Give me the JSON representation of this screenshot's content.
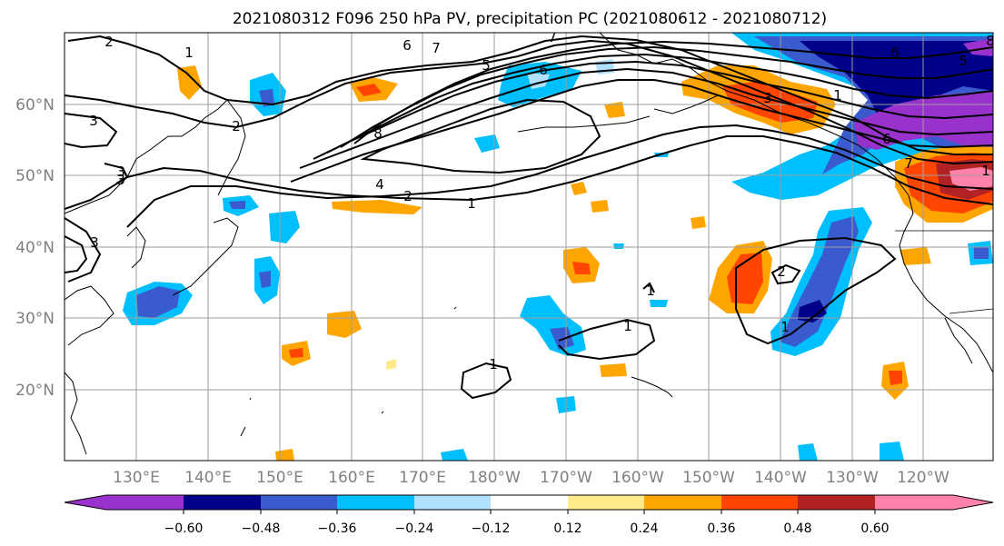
{
  "title": "2021080312 F096 250 hPa PV, precipitation PC (2021080612 - 2021080712)",
  "map": {
    "lat_labels": [
      "60°N",
      "50°N",
      "40°N",
      "30°N",
      "20°N"
    ],
    "lon_labels": [
      "130°E",
      "140°E",
      "150°E",
      "160°E",
      "170°E",
      "180°W",
      "170°W",
      "160°W",
      "150°W",
      "140°W",
      "130°W",
      "120°W"
    ],
    "contour_labels": [
      "2",
      "1",
      "3",
      "2",
      "3",
      "3",
      "3",
      "6",
      "7",
      "5",
      "6",
      "7",
      "8",
      "4",
      "2",
      "1",
      "3",
      "1",
      "6",
      "5",
      "6",
      "7",
      "8",
      "2",
      "1",
      "1",
      "1",
      "1",
      "1"
    ]
  },
  "colorbar": {
    "colors": [
      "#9932cc",
      "#00008b",
      "#3a5bcd",
      "#00bfff",
      "#b0e2ff",
      "#ffffff",
      "#ffeb8a",
      "#ffa500",
      "#ff4500",
      "#b22222",
      "#ff82ab"
    ],
    "tick_labels": [
      "−0.60",
      "−0.48",
      "−0.36",
      "−0.24",
      "−0.12",
      "0.12",
      "0.24",
      "0.36",
      "0.48",
      "0.60"
    ]
  }
}
